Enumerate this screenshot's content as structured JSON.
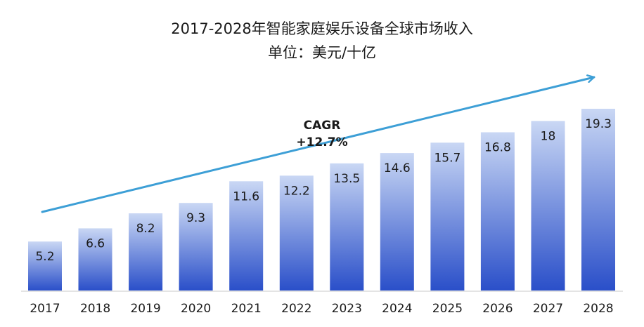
{
  "chart_data": {
    "type": "bar",
    "title": "2017-2028年智能家庭娱乐设备全球市场收入",
    "subtitle": "单位：美元/十亿",
    "categories": [
      "2017",
      "2018",
      "2019",
      "2020",
      "2021",
      "2022",
      "2023",
      "2024",
      "2025",
      "2026",
      "2027",
      "2028"
    ],
    "values": [
      5.2,
      6.6,
      8.2,
      9.3,
      11.6,
      12.2,
      13.5,
      14.6,
      15.7,
      16.8,
      18,
      19.3
    ],
    "value_labels": [
      "5.2",
      "6.6",
      "8.2",
      "9.3",
      "11.6",
      "12.2",
      "13.5",
      "14.6",
      "15.7",
      "16.8",
      "18",
      "19.3"
    ],
    "annotation": {
      "line1": "CAGR",
      "line2": "+12.7%"
    },
    "ylim": [
      0,
      19.3
    ],
    "grid": false,
    "legend": "none"
  },
  "colors": {
    "bar_top": "#c9d7f4",
    "bar_bottom": "#2a4fc9",
    "arrow": "#3d9fd6",
    "axis": "#c8c8c8"
  }
}
